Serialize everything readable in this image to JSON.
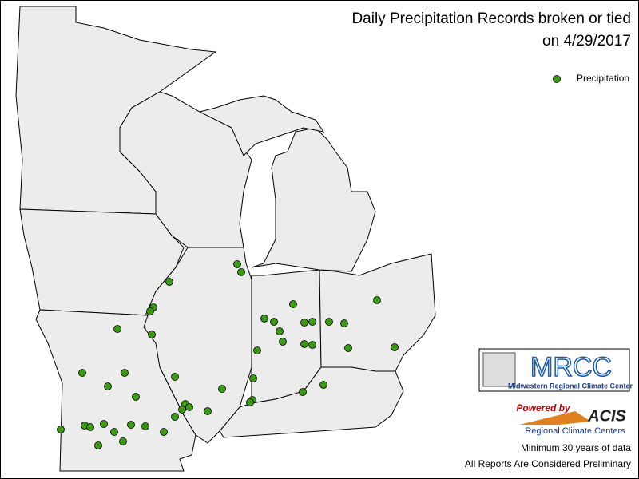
{
  "header": {
    "title": "Daily Precipitation Records broken or tied",
    "subtitle": "on 4/29/2017"
  },
  "legend": {
    "label": "Precipitation",
    "color": "#3a9a12"
  },
  "logos": {
    "mrcc": "MRCC",
    "mrcc_name": "Midwestern Regional Climate Center",
    "powered": "Powered by",
    "acis": "ACIS",
    "rcc": "Regional Climate Centers"
  },
  "footer": {
    "note1": "Minimum 30 years of data",
    "note2": "All Reports Are Considered Preliminary"
  }
}
